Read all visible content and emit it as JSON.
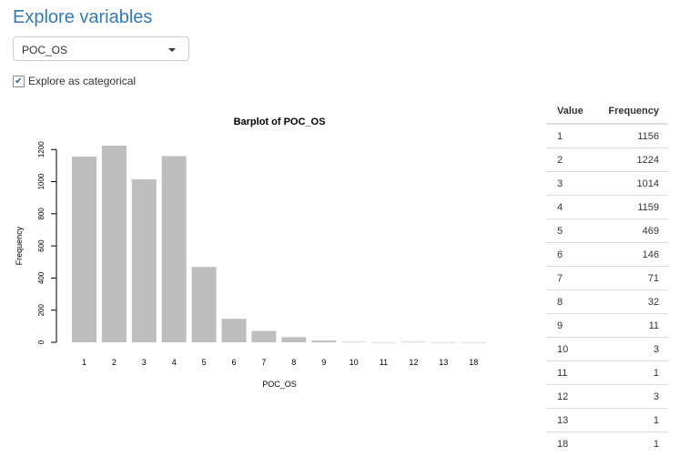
{
  "page": {
    "title": "Explore variables",
    "select_value": "POC_OS",
    "checkbox_checked": true,
    "checkbox_label": "Explore as categorical"
  },
  "chart_data": {
    "type": "bar",
    "title": "Barplot of POC_OS",
    "xlabel": "POC_OS",
    "ylabel": "Frequency",
    "ylim": [
      0,
      1224
    ],
    "yticks": [
      0,
      200,
      400,
      600,
      800,
      1000,
      1200
    ],
    "categories": [
      "1",
      "2",
      "3",
      "4",
      "5",
      "6",
      "7",
      "8",
      "9",
      "10",
      "11",
      "12",
      "13",
      "18"
    ],
    "values": [
      1156,
      1224,
      1014,
      1159,
      469,
      146,
      71,
      32,
      11,
      3,
      1,
      3,
      1,
      1
    ],
    "bar_color": "#bebebe",
    "grid": false
  },
  "table": {
    "headers": [
      "Value",
      "Frequency"
    ],
    "rows": [
      [
        "1",
        "1156"
      ],
      [
        "2",
        "1224"
      ],
      [
        "3",
        "1014"
      ],
      [
        "4",
        "1159"
      ],
      [
        "5",
        "469"
      ],
      [
        "6",
        "146"
      ],
      [
        "7",
        "71"
      ],
      [
        "8",
        "32"
      ],
      [
        "9",
        "11"
      ],
      [
        "10",
        "3"
      ],
      [
        "11",
        "1"
      ],
      [
        "12",
        "3"
      ],
      [
        "13",
        "1"
      ],
      [
        "18",
        "1"
      ]
    ]
  }
}
